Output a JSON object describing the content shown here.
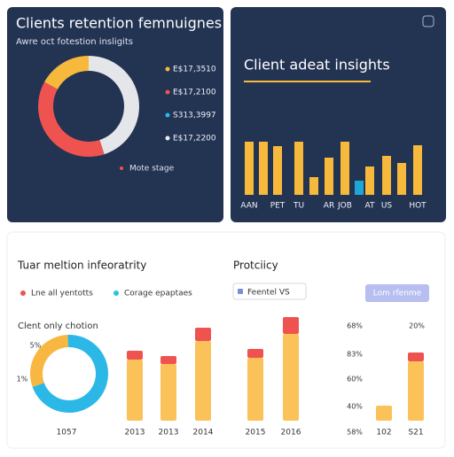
{
  "top_left": {
    "title": "Clients retention femnuignes",
    "subtitle": "Awre oct fotestion insligits",
    "legend": [
      {
        "label": "E$17,3510",
        "color": "#f6b93b"
      },
      {
        "label": "E$17,2100",
        "color": "#ef5350"
      },
      {
        "label": "S313,3997",
        "color": "#29b6f6"
      },
      {
        "label": "E$17,2200",
        "color": "#eceff1"
      }
    ],
    "annotation": "Mote stage"
  },
  "top_right": {
    "title": "Client adeat insights"
  },
  "bottom": {
    "title": "Tuar meltion infeoratrity",
    "section": "Protciicy",
    "legend": [
      {
        "label": "Lne all yentotts",
        "color": "#ef5350"
      },
      {
        "label": "Corage epaptaes",
        "color": "#26c6da"
      }
    ],
    "dropdown": "Feentel VS",
    "button": "Lom rfenme",
    "donut_label": "Clent only chotion",
    "mini_labels": [
      "68%",
      "83%",
      "60%",
      "40%",
      "58%",
      "20%"
    ]
  },
  "chart_data": [
    {
      "type": "pie",
      "values": [
        45,
        38,
        17
      ],
      "colors": [
        "#e4e6ea",
        "#ef5350",
        "#f6b93b"
      ]
    },
    {
      "type": "bar",
      "categories": [
        "AAN",
        null,
        "PET",
        "TU",
        null,
        "AR",
        "JOB",
        null,
        "AT",
        "US",
        null,
        "HOT"
      ],
      "values": [
        60,
        60,
        55,
        60,
        20,
        42,
        60,
        16,
        32,
        44,
        36,
        56
      ],
      "colors": [
        "#f6b93b",
        "#f6b93b",
        "#f6b93b",
        "#f6b93b",
        "#f6b93b",
        "#f6b93b",
        "#f6b93b",
        "#1ea7d6",
        "#f6b93b",
        "#f6b93b",
        "#f6b93b",
        "#f6b93b"
      ],
      "ylim": [
        0,
        70
      ]
    },
    {
      "type": "pie",
      "values": [
        30,
        70
      ],
      "colors": [
        "#f8b740",
        "#2bb8e6"
      ],
      "xlabel": "1057",
      "annotations": [
        "5%",
        "1%"
      ]
    },
    {
      "type": "bar",
      "stacked": true,
      "categories": [
        "2013",
        "2013",
        "2014",
        "2015",
        "2016"
      ],
      "series": [
        {
          "color": "#fbc25a",
          "values": [
            69,
            64,
            90,
            71,
            98
          ]
        },
        {
          "color": "#ef5350",
          "values": [
            10,
            9,
            15,
            10,
            19
          ]
        }
      ],
      "ylim": [
        0,
        130
      ]
    },
    {
      "type": "bar",
      "stacked": true,
      "categories": [
        "102",
        "S21"
      ],
      "series": [
        {
          "color": "#fbc25a",
          "values": [
            17,
            67
          ]
        },
        {
          "color": "#ef5350",
          "values": [
            null,
            10
          ]
        }
      ],
      "ylim": [
        0,
        130
      ]
    }
  ]
}
